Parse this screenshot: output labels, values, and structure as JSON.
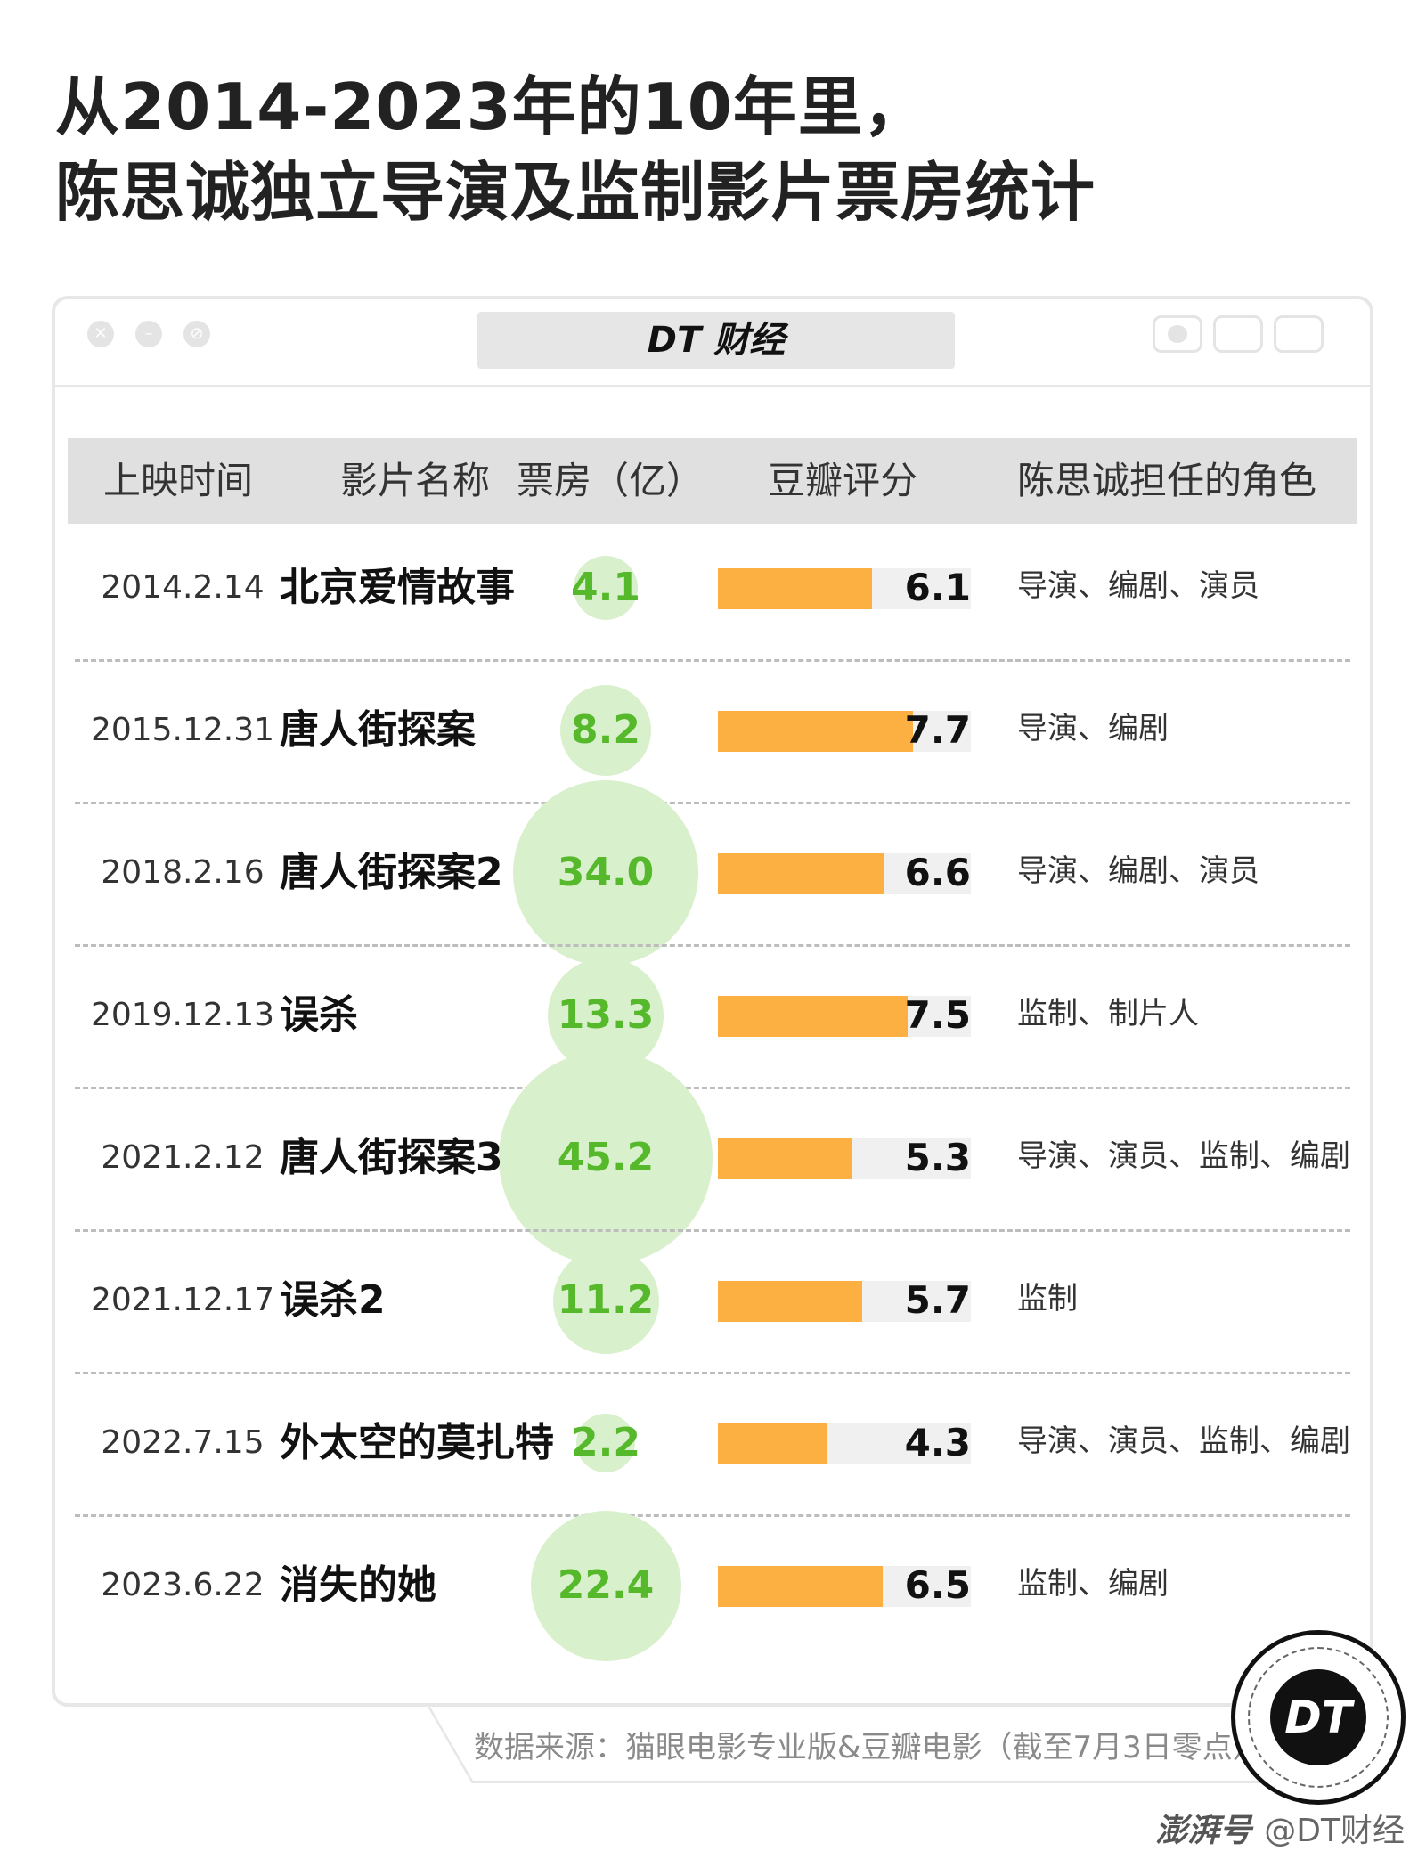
{
  "title": {
    "line1": "从2014-2023年的10年里，",
    "line2": "陈思诚独立导演及监制影片票房统计"
  },
  "brand": {
    "tab": "DT 财经",
    "logo": "DT",
    "credit_platform": "澎湃号",
    "credit_account": "@DT财经"
  },
  "source": "数据来源：猫眼电影专业版&豆瓣电影（截至7月3日零点）",
  "colors": {
    "bar": "#fdb042",
    "bubble": "#d9f0cc",
    "box_text": "#56b82b",
    "header_bg": "#e0e0e0"
  },
  "chart_data": {
    "type": "table",
    "columns": [
      "上映时间",
      "影片名称",
      "票房（亿）",
      "豆瓣评分",
      "陈思诚担任的角色"
    ],
    "score_range": [
      0,
      10
    ],
    "rows": [
      {
        "date": "2014.2.14",
        "film": "北京爱情故事",
        "box_office": "4.1",
        "score": "6.1",
        "role": "导演、编剧、演员"
      },
      {
        "date": "2015.12.31",
        "film": "唐人街探案",
        "box_office": "8.2",
        "score": "7.7",
        "role": "导演、编剧"
      },
      {
        "date": "2018.2.16",
        "film": "唐人街探案2",
        "box_office": "34.0",
        "score": "6.6",
        "role": "导演、编剧、演员"
      },
      {
        "date": "2019.12.13",
        "film": "误杀",
        "box_office": "13.3",
        "score": "7.5",
        "role": "监制、制片人"
      },
      {
        "date": "2021.2.12",
        "film": "唐人街探案3",
        "box_office": "45.2",
        "score": "5.3",
        "role": "导演、演员、监制、编剧"
      },
      {
        "date": "2021.12.17",
        "film": "误杀2",
        "box_office": "11.2",
        "score": "5.7",
        "role": "监制"
      },
      {
        "date": "2022.7.15",
        "film": "外太空的莫扎特",
        "box_office": "2.2",
        "score": "4.3",
        "role": "导演、演员、监制、编剧"
      },
      {
        "date": "2023.6.22",
        "film": "消失的她",
        "box_office": "22.4",
        "score": "6.5",
        "role": "监制、编剧"
      }
    ]
  }
}
